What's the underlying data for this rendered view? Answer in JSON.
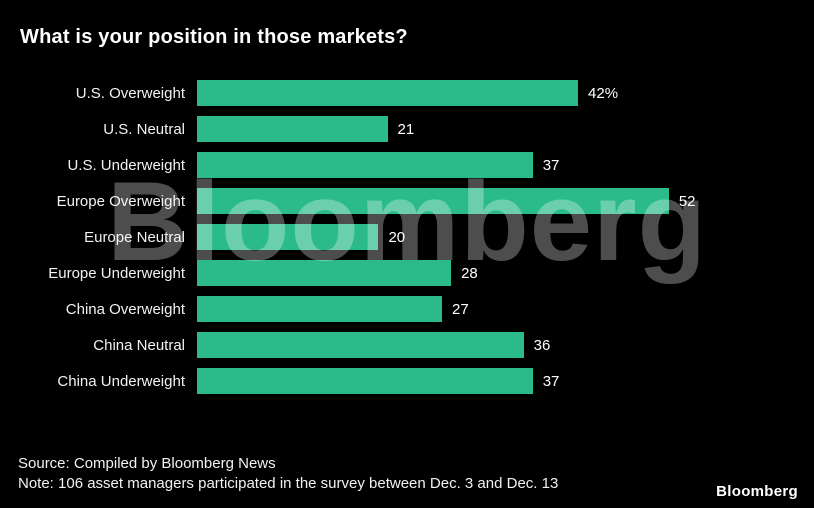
{
  "title": "What is your position in those markets?",
  "watermark": "Bloomberg",
  "footer": {
    "source": "Source: Compiled by Bloomberg News",
    "note": "Note: 106 asset managers participated in the survey between Dec. 3 and Dec. 13",
    "logo": "Bloomberg"
  },
  "colors": {
    "background": "#000000",
    "bar": "#2bbb8a",
    "text": "#ffffff",
    "watermark_gray": "rgba(255,255,255,0.30)"
  },
  "chart_data": {
    "type": "bar",
    "orientation": "horizontal",
    "title": "What is your position in those markets?",
    "categories": [
      "U.S. Overweight",
      "U.S. Neutral",
      "U.S. Underweight",
      "Europe Overweight",
      "Europe Neutral",
      "Europe Underweight",
      "China Overweight",
      "China Neutral",
      "China Underweight"
    ],
    "values": [
      42,
      21,
      37,
      52,
      20,
      28,
      27,
      36,
      37
    ],
    "value_labels": [
      "42%",
      "21",
      "37",
      "52",
      "20",
      "28",
      "27",
      "36",
      "37"
    ],
    "xlabel": "",
    "ylabel": "",
    "xlim": [
      0,
      68
    ],
    "grid": false,
    "legend": "none",
    "bar_color": "#2bbb8a"
  }
}
